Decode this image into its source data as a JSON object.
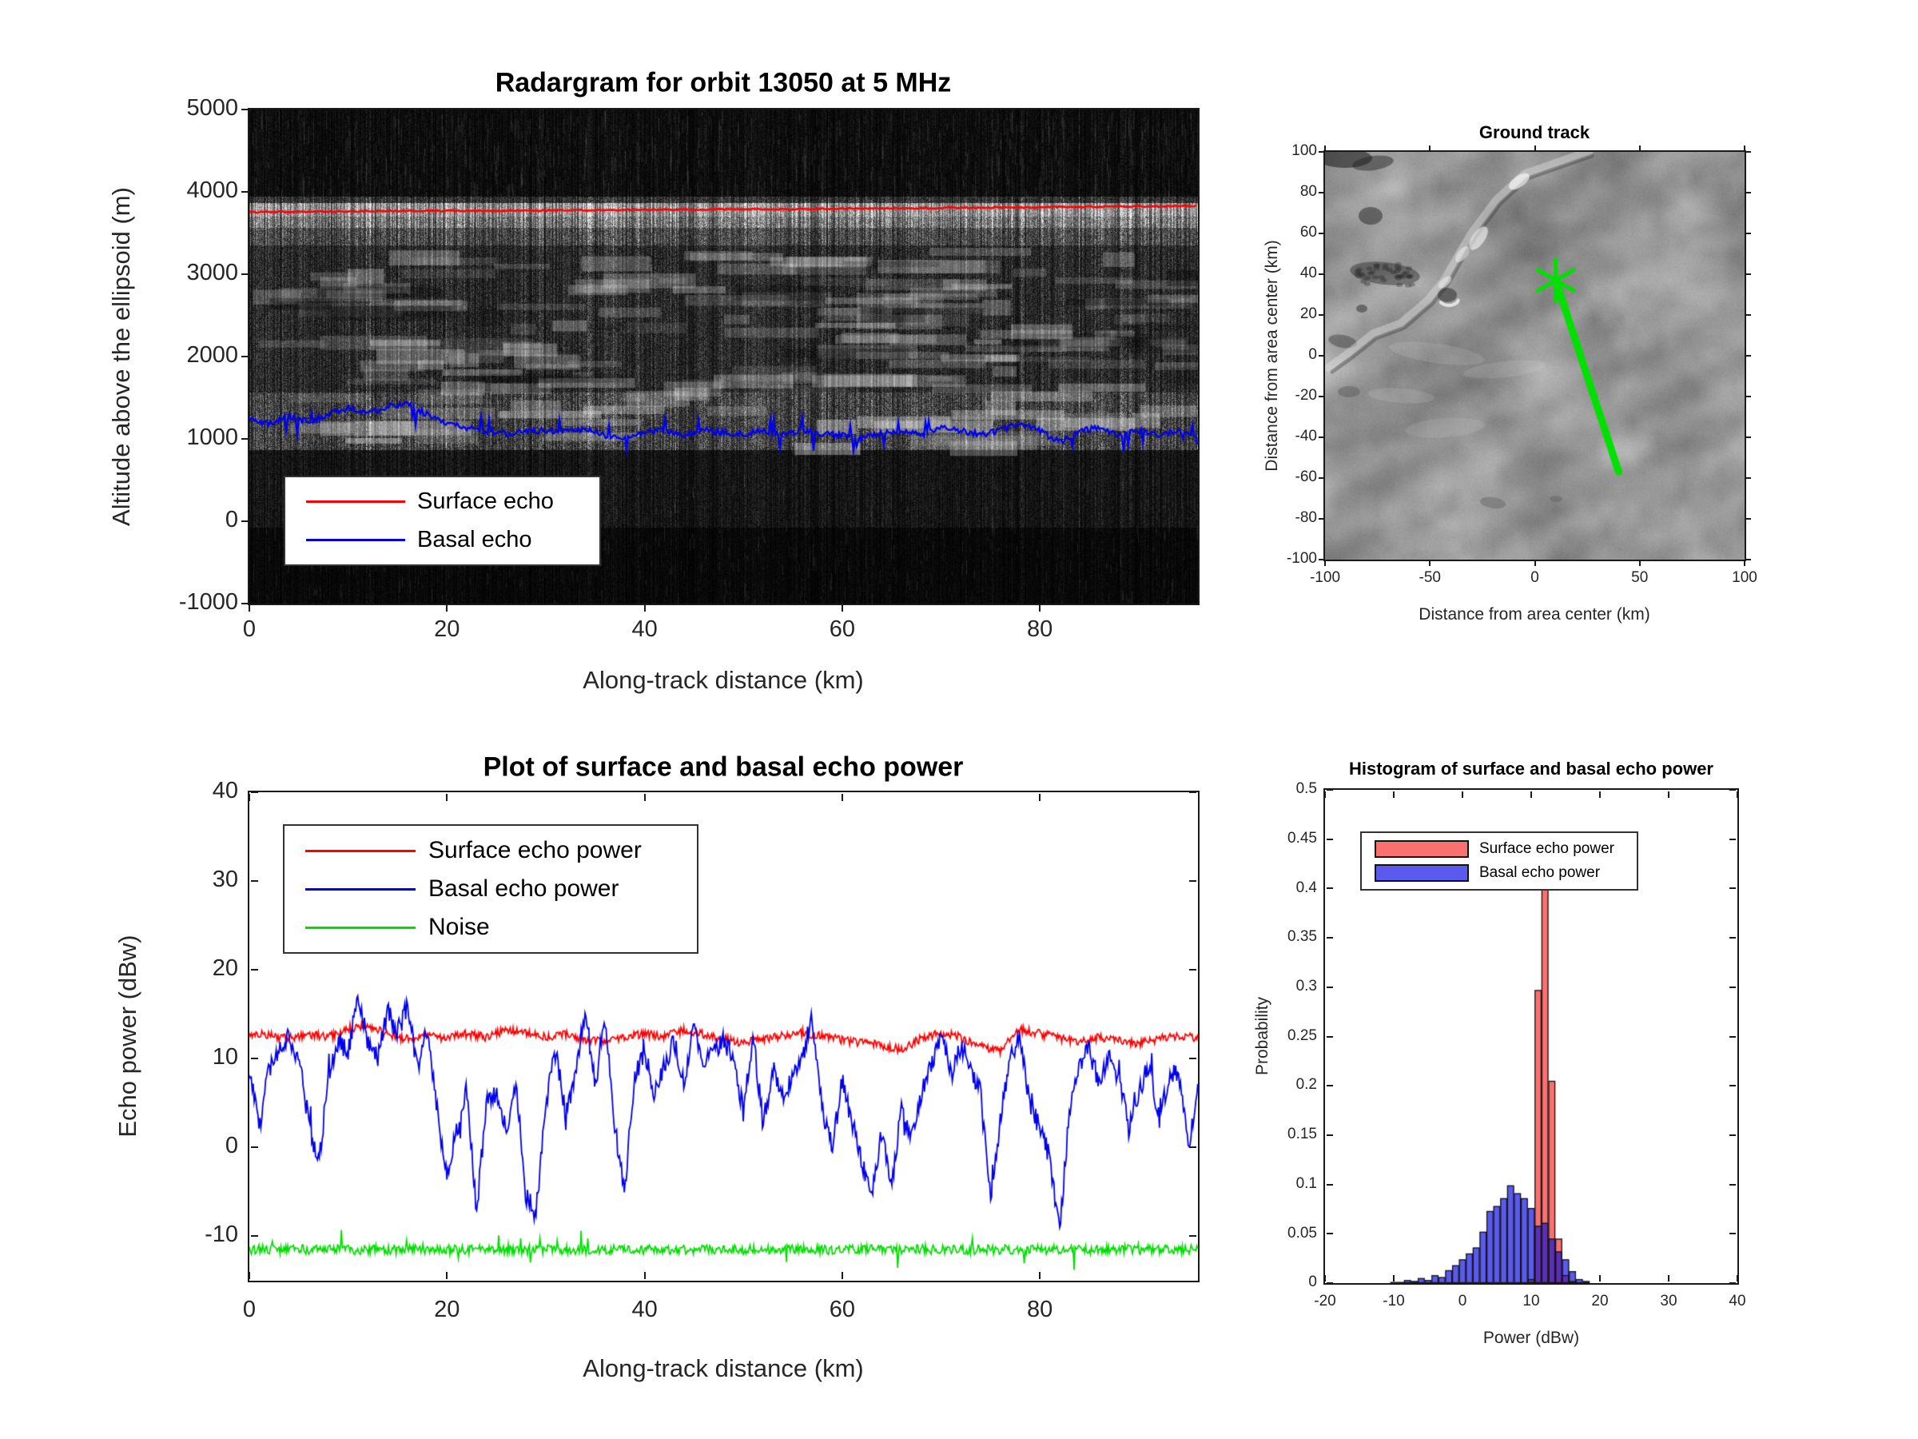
{
  "colors": {
    "surface_line": "#ff0000",
    "basal_line": "#0000ee",
    "noise_line": "#00dd00",
    "track_line": "#00e100",
    "hist_surface_fill": "#f87070",
    "hist_basal_fill": "#5a5aee",
    "hist_overlap_fill": "#5d2fb8",
    "axis": "#262626"
  },
  "chart_data": [
    {
      "id": "radargram",
      "type": "heatmap",
      "title": "Radargram for orbit 13050 at 5 MHz",
      "xlabel": "Along-track distance (km)",
      "ylabel": "Altitude above the ellipsoid (m)",
      "xlim": [
        0,
        96
      ],
      "ylim": [
        -1000,
        5000
      ],
      "xticks": [
        "0",
        "20",
        "40",
        "60",
        "80"
      ],
      "yticks": [
        "5000",
        "4000",
        "3000",
        "2000",
        "1000",
        "0",
        "-1000"
      ],
      "legend": [
        {
          "label": "Surface echo",
          "color": "#ff0000"
        },
        {
          "label": "Basal echo",
          "color": "#0000ee"
        }
      ],
      "surface_echo_m": {
        "x": [
          0,
          8,
          16,
          24,
          32,
          40,
          48,
          56,
          64,
          72,
          80,
          88,
          96
        ],
        "y": [
          3755,
          3762,
          3768,
          3772,
          3776,
          3781,
          3787,
          3793,
          3799,
          3806,
          3814,
          3822,
          3830
        ]
      },
      "basal_echo_m": {
        "x": [
          0,
          2,
          4,
          6,
          8,
          10,
          12,
          14,
          16,
          18,
          20,
          22,
          24,
          26,
          28,
          30,
          32,
          34,
          36,
          38,
          40,
          42,
          44,
          46,
          48,
          50,
          52,
          54,
          56,
          58,
          60,
          62,
          64,
          66,
          68,
          70,
          72,
          74,
          76,
          78,
          80,
          82,
          84,
          86,
          88,
          90,
          92,
          94,
          96
        ],
        "y": [
          1230,
          1180,
          1280,
          1200,
          1300,
          1380,
          1300,
          1400,
          1420,
          1300,
          1180,
          1140,
          1100,
          1060,
          1090,
          1100,
          1080,
          1120,
          1040,
          1010,
          1080,
          1100,
          1050,
          1100,
          1080,
          1060,
          1100,
          1050,
          1110,
          1060,
          1050,
          1000,
          1080,
          1100,
          1050,
          1140,
          1100,
          1050,
          1100,
          1190,
          1100,
          960,
          1090,
          1140,
          1050,
          1100,
          1050,
          1100,
          1050
        ]
      }
    },
    {
      "id": "ground-track",
      "type": "line",
      "title": "Ground track",
      "xlabel": "Distance from area center (km)",
      "ylabel": "Distance from area center (km)",
      "xlim": [
        -100,
        100
      ],
      "ylim": [
        -100,
        100
      ],
      "xticks": [
        "-100",
        "-50",
        "0",
        "50",
        "100"
      ],
      "yticks": [
        "100",
        "80",
        "60",
        "40",
        "20",
        "0",
        "-20",
        "-40",
        "-60",
        "-80",
        "-100"
      ],
      "track": {
        "x": [
          10,
          40
        ],
        "y": [
          37,
          -57
        ],
        "color": "#00e100",
        "start_marker": "asterisk"
      }
    },
    {
      "id": "echo-power",
      "type": "line",
      "title": "Plot of surface and basal echo power",
      "xlabel": "Along-track distance (km)",
      "ylabel": "Echo power (dBw)",
      "xlim": [
        0,
        96
      ],
      "ylim": [
        -15,
        40
      ],
      "xticks": [
        "0",
        "20",
        "40",
        "60",
        "80"
      ],
      "yticks": [
        "40",
        "30",
        "20",
        "10",
        "0",
        "-10"
      ],
      "series": [
        {
          "name": "Surface echo power",
          "color": "#ff0000",
          "x_start": 0,
          "x_step": 2,
          "y": [
            12.9,
            12.6,
            12.3,
            12.7,
            12.4,
            13.4,
            13.8,
            12.7,
            12.2,
            12.6,
            12.3,
            12.8,
            12.4,
            13.3,
            13.0,
            12.4,
            12.7,
            12.2,
            11.9,
            12.4,
            12.8,
            12.5,
            13.2,
            12.7,
            12.2,
            11.8,
            12.2,
            12.6,
            12.9,
            12.5,
            12.1,
            11.8,
            11.5,
            11.0,
            12.3,
            12.9,
            12.4,
            11.4,
            10.9,
            13.3,
            12.8,
            12.3,
            11.9,
            12.4,
            12.1,
            11.7,
            12.2,
            12.6,
            12.3
          ]
        },
        {
          "name": "Basal echo power",
          "color": "#0000ee",
          "x_start": 0,
          "x_step": 1,
          "y": [
            8.5,
            2,
            9,
            11,
            12.5,
            10,
            3,
            -2,
            8,
            12,
            10.5,
            17.5,
            12,
            10,
            15.5,
            13,
            16,
            9,
            13,
            4,
            -3,
            2,
            6.5,
            -7,
            5,
            6,
            2,
            7.5,
            -5.5,
            -7.5,
            5,
            11,
            4,
            8,
            15.5,
            7,
            15,
            2,
            -4.5,
            8,
            11,
            6,
            9,
            12,
            7,
            14,
            9.5,
            11,
            12,
            10,
            4,
            12.5,
            2.5,
            9,
            6,
            8,
            10.5,
            14.5,
            4,
            0,
            7.5,
            3,
            -2,
            -5.5,
            2,
            -4,
            4.5,
            1,
            6,
            9,
            13,
            8,
            11.5,
            9,
            6,
            -6,
            3,
            10.5,
            12,
            5,
            2,
            -1,
            -9.5,
            4,
            9,
            11,
            7,
            10,
            8,
            2,
            6,
            9.5,
            4,
            7,
            9,
            0,
            7
          ]
        },
        {
          "name": "Noise",
          "color": "#00dd00",
          "x_start": 0,
          "x_step": 96,
          "y": [
            -11.5,
            -11.5
          ]
        }
      ]
    },
    {
      "id": "power-histogram",
      "type": "bar",
      "title": "Histogram of surface and basal echo power",
      "xlabel": "Power (dBw)",
      "ylabel": "Probability",
      "xlim": [
        -20,
        40
      ],
      "ylim": [
        0,
        0.5
      ],
      "xticks": [
        "-20",
        "-10",
        "0",
        "10",
        "20",
        "30",
        "40"
      ],
      "yticks": [
        "0",
        "0.05",
        "0.1",
        "0.15",
        "0.2",
        "0.25",
        "0.3",
        "0.35",
        "0.4",
        "0.45",
        "0.5"
      ],
      "bin_width": 1,
      "bin_centers": [
        -10,
        -9,
        -8,
        -7,
        -6,
        -5,
        -4,
        -3,
        -2,
        -1,
        0,
        1,
        2,
        3,
        4,
        5,
        6,
        7,
        8,
        9,
        10,
        11,
        12,
        13,
        14,
        15,
        16,
        17,
        18
      ],
      "series": [
        {
          "name": "Surface echo power",
          "color": "#f87070",
          "probabilities": [
            0,
            0,
            0,
            0,
            0,
            0,
            0,
            0,
            0,
            0,
            0,
            0,
            0,
            0,
            0,
            0,
            0,
            0,
            0,
            0,
            0.004,
            0.297,
            0.44,
            0.205,
            0.045,
            0.008,
            0.002,
            0,
            0
          ]
        },
        {
          "name": "Basal echo power",
          "color": "#5a5aee",
          "probabilities": [
            0.001,
            0.001,
            0.003,
            0.002,
            0.005,
            0.003,
            0.008,
            0.006,
            0.013,
            0.018,
            0.024,
            0.03,
            0.036,
            0.052,
            0.073,
            0.078,
            0.086,
            0.099,
            0.091,
            0.086,
            0.076,
            0.058,
            0.061,
            0.045,
            0.032,
            0.024,
            0.012,
            0.004,
            0.002
          ]
        }
      ]
    }
  ]
}
